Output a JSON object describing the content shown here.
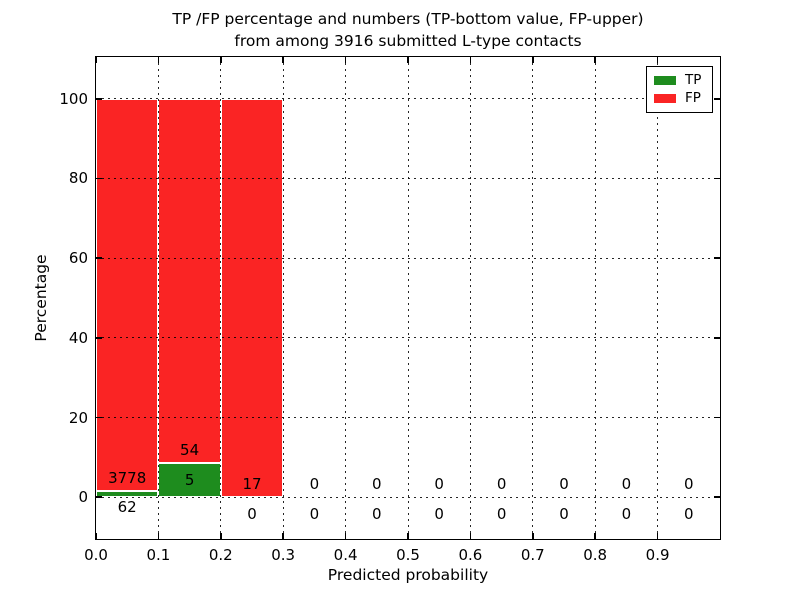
{
  "chart_data": {
    "type": "bar",
    "stacked": true,
    "title_line1": "TP /FP percentage and numbers (TP-bottom value, FP-upper)",
    "title_line2": "from among 3916 submitted L-type contacts",
    "xlabel": "Predicted probability",
    "ylabel": "Percentage",
    "xlim": [
      0.0,
      1.0
    ],
    "ylim": [
      -10.5,
      110.5
    ],
    "bin_width": 0.1,
    "bin_starts": [
      0.0,
      0.1,
      0.2,
      0.3,
      0.4,
      0.5,
      0.6,
      0.7,
      0.8,
      0.9
    ],
    "xtick_labels": [
      "0.0",
      "0.1",
      "0.2",
      "0.3",
      "0.4",
      "0.5",
      "0.6",
      "0.7",
      "0.8",
      "0.9"
    ],
    "xtick_values": [
      0.0,
      0.1,
      0.2,
      0.3,
      0.4,
      0.5,
      0.6,
      0.7,
      0.8,
      0.9
    ],
    "ytick_labels": [
      "0",
      "20",
      "40",
      "60",
      "80",
      "100"
    ],
    "ytick_values": [
      0,
      20,
      40,
      60,
      80,
      100
    ],
    "grid": true,
    "grid_style": "dotted",
    "legend_position": "upper right",
    "legend": [
      {
        "name": "TP",
        "color": "#1e8c1e"
      },
      {
        "name": "FP",
        "color": "#fa2424"
      }
    ],
    "series": [
      {
        "name": "TP",
        "color": "#1e8c1e",
        "pct": [
          1.61,
          8.47,
          0,
          0,
          0,
          0,
          0,
          0,
          0,
          0
        ],
        "counts": [
          62,
          5,
          0,
          0,
          0,
          0,
          0,
          0,
          0,
          0
        ]
      },
      {
        "name": "FP",
        "color": "#fa2424",
        "pct": [
          98.39,
          91.53,
          100,
          0,
          0,
          0,
          0,
          0,
          0,
          0
        ],
        "counts": [
          3778,
          54,
          17,
          0,
          0,
          0,
          0,
          0,
          0,
          0
        ]
      }
    ],
    "bar_edge_color": "#ffffff",
    "fp_label_offset_pct": 3.3,
    "tp_label_offset_pct": -4.2
  }
}
